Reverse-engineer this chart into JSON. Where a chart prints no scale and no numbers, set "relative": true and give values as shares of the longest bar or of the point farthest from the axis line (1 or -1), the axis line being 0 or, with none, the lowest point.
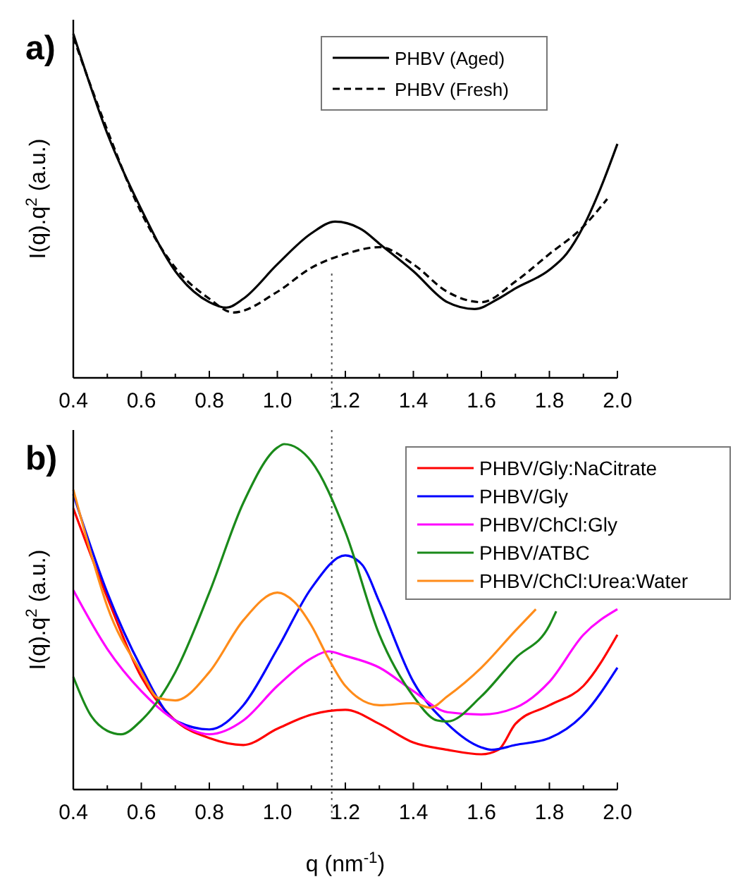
{
  "chart_data": [
    {
      "type": "line",
      "title": "a)",
      "ylabel": "I(q).q$^{2}$ (a.u.)",
      "relative": true,
      "xlim": [
        0.4,
        2.0
      ],
      "xticks": [
        0.4,
        {
          "value": 0.5,
          "label": null
        },
        0.6,
        {
          "value": 0.7,
          "label": null
        },
        0.8,
        {
          "value": 0.9,
          "label": null
        },
        {
          "value": 1.0,
          "label": "1.0"
        },
        {
          "value": 1.1,
          "label": null
        },
        1.2,
        {
          "value": 1.3,
          "label": null
        },
        1.4,
        {
          "value": 1.5,
          "label": null
        },
        1.6,
        {
          "value": 1.7,
          "label": null
        },
        1.8,
        {
          "value": 1.9,
          "label": null
        },
        {
          "value": 2.0,
          "label": "2.0"
        }
      ],
      "legend": "top right",
      "ref_lines": [
        {
          "axis": "x",
          "value": 1.16,
          "line_style": "dotted",
          "color": "#555555"
        }
      ],
      "series": [
        {
          "name": "PHBV (Aged)",
          "color": "#000000",
          "line_style": "solid",
          "x": [
            0.4,
            0.5,
            0.6,
            0.7,
            0.8,
            0.85,
            0.9,
            1.0,
            1.1,
            1.17,
            1.25,
            1.3,
            1.4,
            1.5,
            1.58,
            1.65,
            1.7,
            1.8,
            1.85,
            1.9,
            1.95,
            2.0
          ],
          "values": [
            1.0,
            0.71,
            0.49,
            0.31,
            0.22,
            0.204,
            0.23,
            0.33,
            0.42,
            0.454,
            0.43,
            0.39,
            0.31,
            0.22,
            0.2,
            0.23,
            0.26,
            0.314,
            0.36,
            0.44,
            0.55,
            0.68
          ]
        },
        {
          "name": "PHBV (Fresh)",
          "color": "#000000",
          "line_style": "dashed",
          "x": [
            0.4,
            0.5,
            0.6,
            0.7,
            0.8,
            0.87,
            1.0,
            1.1,
            1.2,
            1.3,
            1.4,
            1.5,
            1.6,
            1.7,
            1.8,
            1.9,
            1.97
          ],
          "values": [
            0.99,
            0.72,
            0.48,
            0.32,
            0.23,
            0.19,
            0.25,
            0.32,
            0.36,
            0.38,
            0.33,
            0.25,
            0.22,
            0.28,
            0.36,
            0.44,
            0.52
          ]
        }
      ]
    },
    {
      "type": "line",
      "title": "b)",
      "xlabel": "q (nm$^{-1}$)",
      "ylabel": "I(q).q$^{2}$ (a.u.)",
      "relative": true,
      "xlim": [
        0.4,
        2.0
      ],
      "xticks": [
        0.4,
        {
          "value": 0.5,
          "label": null
        },
        0.6,
        {
          "value": 0.7,
          "label": null
        },
        0.8,
        {
          "value": 0.9,
          "label": null
        },
        {
          "value": 1.0,
          "label": "1.0"
        },
        {
          "value": 1.1,
          "label": null
        },
        1.2,
        {
          "value": 1.3,
          "label": null
        },
        1.4,
        {
          "value": 1.5,
          "label": null
        },
        1.6,
        {
          "value": 1.7,
          "label": null
        },
        1.8,
        {
          "value": 1.9,
          "label": null
        },
        {
          "value": 2.0,
          "label": "2.0"
        }
      ],
      "legend": "top right",
      "ref_lines": [
        {
          "axis": "x",
          "value": 1.16,
          "line_style": "dotted",
          "color": "#555555"
        }
      ],
      "series": [
        {
          "name": "PHBV/Gly:NaCitrate",
          "color": "#ff0000",
          "x": [
            0.4,
            0.5,
            0.6,
            0.7,
            0.8,
            0.9,
            1.0,
            1.1,
            1.2,
            1.3,
            1.4,
            1.5,
            1.6,
            1.65,
            1.7,
            1.8,
            1.9,
            2.0
          ],
          "values": [
            0.814,
            0.556,
            0.326,
            0.2,
            0.149,
            0.129,
            0.176,
            0.217,
            0.231,
            0.19,
            0.136,
            0.115,
            0.102,
            0.115,
            0.19,
            0.244,
            0.3,
            0.448
          ]
        },
        {
          "name": "PHBV/Gly",
          "color": "#0000ff",
          "x": [
            0.4,
            0.5,
            0.6,
            0.7,
            0.8,
            0.9,
            1.0,
            1.1,
            1.2,
            1.25,
            1.3,
            1.4,
            1.5,
            1.6,
            1.63,
            1.7,
            1.8,
            1.9,
            2.0
          ],
          "values": [
            0.855,
            0.57,
            0.353,
            0.2,
            0.174,
            0.244,
            0.407,
            0.583,
            0.678,
            0.65,
            0.543,
            0.312,
            0.19,
            0.122,
            0.115,
            0.129,
            0.149,
            0.217,
            0.353
          ]
        },
        {
          "name": "PHBV/ChCl:Gly",
          "color": "#ff00ff",
          "x": [
            0.4,
            0.5,
            0.6,
            0.7,
            0.8,
            0.9,
            1.0,
            1.1,
            1.15,
            1.2,
            1.3,
            1.4,
            1.5,
            1.6,
            1.7,
            1.8,
            1.9,
            2.0
          ],
          "values": [
            0.577,
            0.407,
            0.285,
            0.2,
            0.16,
            0.2,
            0.3,
            0.38,
            0.4,
            0.387,
            0.353,
            0.285,
            0.224,
            0.217,
            0.237,
            0.312,
            0.448,
            0.522
          ]
        },
        {
          "name": "PHBV/ATBC",
          "color": "#1a8a1a",
          "x": [
            0.4,
            0.45,
            0.5,
            0.54,
            0.6,
            0.7,
            0.8,
            0.9,
            1.0,
            1.02,
            1.1,
            1.2,
            1.3,
            1.4,
            1.47,
            1.5,
            1.6,
            1.7,
            1.8,
            1.82
          ],
          "values": [
            0.326,
            0.217,
            0.17,
            0.16,
            0.2,
            0.34,
            0.57,
            0.83,
            0.99,
            1.0,
            0.95,
            0.746,
            0.448,
            0.27,
            0.2,
            0.197,
            0.27,
            0.38,
            0.475,
            0.516
          ]
        },
        {
          "name": "PHBV/ChCl:Urea:Water",
          "color": "#ff8c1a",
          "x": [
            0.4,
            0.45,
            0.5,
            0.6,
            0.65,
            0.7,
            0.8,
            0.9,
            1.0,
            1.05,
            1.1,
            1.15,
            1.2,
            1.3,
            1.4,
            1.45,
            1.5,
            1.6,
            1.7,
            1.76
          ],
          "values": [
            0.868,
            0.69,
            0.53,
            0.34,
            0.265,
            0.258,
            0.34,
            0.49,
            0.57,
            0.543,
            0.475,
            0.38,
            0.3,
            0.244,
            0.25,
            0.237,
            0.27,
            0.353,
            0.46,
            0.522
          ]
        }
      ]
    }
  ]
}
